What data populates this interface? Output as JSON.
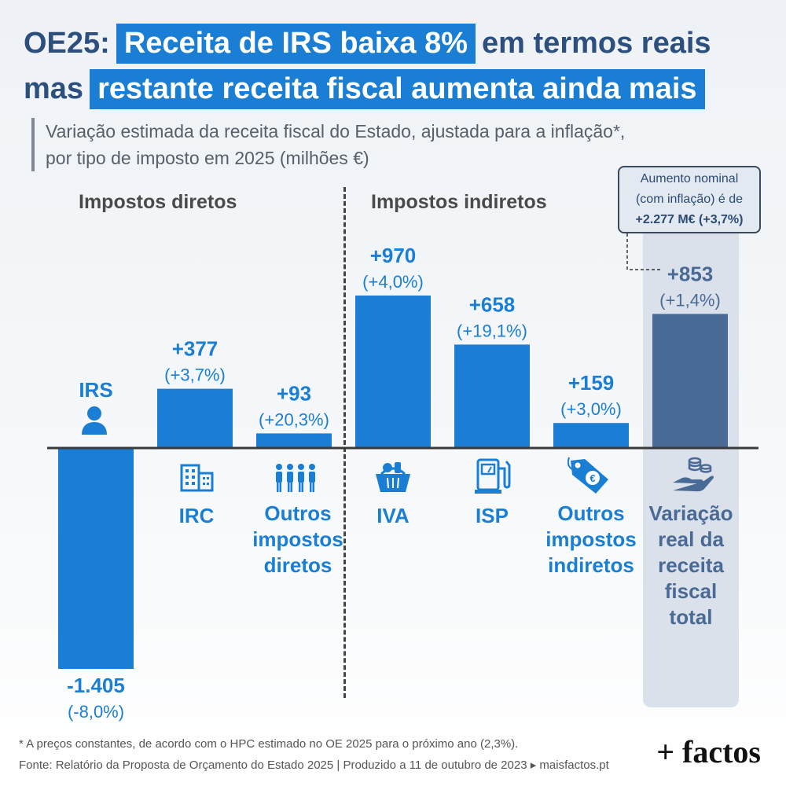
{
  "title": {
    "line1_prefix": "OE25:",
    "line1_highlight": "Receita de IRS baixa 8%",
    "line1_suffix": "em termos reais",
    "line2_prefix": "mas",
    "line2_highlight": "restante receita fiscal aumenta ainda mais"
  },
  "subtitle": {
    "line1": "Variação estimada da receita fiscal do Estado, ajustada para a inflação*,",
    "line2": "por tipo de imposto em 2025 (milhões €)"
  },
  "groups": {
    "direct": "Impostos diretos",
    "indirect": "Impostos indiretos"
  },
  "note": {
    "line1": "Aumento nominal",
    "line2": "(com inflação) é de",
    "line3": "+2.277 M€ (+3,7%)"
  },
  "categories": {
    "irs": "IRS",
    "irc": "IRC",
    "outros_diretos": [
      "Outros",
      "impostos",
      "diretos"
    ],
    "iva": "IVA",
    "isp": "ISP",
    "outros_indiretos": [
      "Outros",
      "impostos",
      "indiretos"
    ],
    "total": [
      "Variação",
      "real da",
      "receita",
      "fiscal",
      "total"
    ]
  },
  "chart_data": {
    "type": "bar",
    "categories": [
      "IRS",
      "IRC",
      "Outros impostos diretos",
      "IVA",
      "ISP",
      "Outros impostos indiretos",
      "Variação real da receita fiscal total"
    ],
    "values": [
      -1405,
      377,
      93,
      970,
      658,
      159,
      853
    ],
    "value_labels": [
      "-1.405",
      "+377",
      "+93",
      "+970",
      "+658",
      "+159",
      "+853"
    ],
    "pct_labels": [
      "(-8,0%)",
      "(+3,7%)",
      "(+20,3%)",
      "(+4,0%)",
      "(+19,1%)",
      "(+3,0%)",
      "(+1,4%)"
    ],
    "ylim": [
      -1405,
      970
    ],
    "colors": {
      "bar": "#1a7fd4",
      "total": "#4a6a96",
      "axis": "#3a3a3a"
    }
  },
  "footnotes": {
    "line1": "* A preços constantes, de acordo com o HPC estimado no OE 2025 para o próximo ano (2,3%).",
    "line2": "Fonte: Relatório da Proposta de Orçamento do Estado 2025 | Produzido a 11 de outubro de 2023 ▸ maisfactos.pt"
  },
  "logo": "+ factos",
  "icons": [
    "person-icon",
    "building-icon",
    "people-group-icon",
    "shopping-basket-icon",
    "fuel-pump-icon",
    "price-tag-euro-icon",
    "hand-coins-icon"
  ]
}
